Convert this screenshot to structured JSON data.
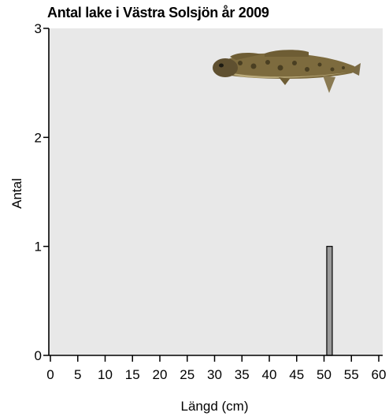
{
  "chart_data": {
    "type": "bar",
    "title": "Antal lake i Västra Solsjön år 2009",
    "xlabel": "Längd (cm)",
    "ylabel": "Antal",
    "xlim": [
      0,
      60
    ],
    "ylim": [
      0,
      3
    ],
    "x_ticks": [
      0,
      5,
      10,
      15,
      20,
      25,
      30,
      35,
      40,
      45,
      50,
      55,
      60
    ],
    "y_ticks": [
      0,
      1,
      2,
      3
    ],
    "bars": [
      {
        "x": 51,
        "value": 1
      }
    ],
    "grid": false,
    "plot_background": "#e8e8e8",
    "bar_color": "#9a9a9a",
    "illustration": "burbot-fish-icon"
  }
}
